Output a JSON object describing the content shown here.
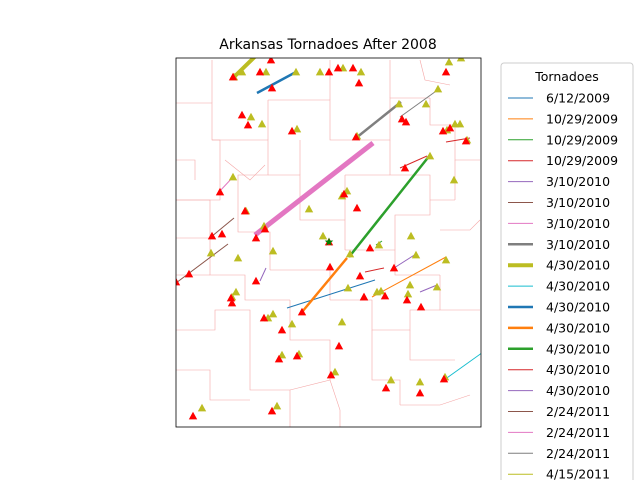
{
  "title": "Arkansas Tornadoes After 2008",
  "legend": {
    "title": "Tornadoes",
    "entries": [
      {
        "label": "6/12/2009",
        "color": "#1f77b4",
        "width": 1
      },
      {
        "label": "10/29/2009",
        "color": "#ff7f0e",
        "width": 1
      },
      {
        "label": "10/29/2009",
        "color": "#2ca02c",
        "width": 1
      },
      {
        "label": "10/29/2009",
        "color": "#d62728",
        "width": 1
      },
      {
        "label": "3/10/2010",
        "color": "#9467bd",
        "width": 1
      },
      {
        "label": "3/10/2010",
        "color": "#8c564b",
        "width": 1
      },
      {
        "label": "3/10/2010",
        "color": "#e377c2",
        "width": 1
      },
      {
        "label": "3/10/2010",
        "color": "#7f7f7f",
        "width": 2.5
      },
      {
        "label": "4/30/2010",
        "color": "#bcbd22",
        "width": 4
      },
      {
        "label": "4/30/2010",
        "color": "#17becf",
        "width": 1
      },
      {
        "label": "4/30/2010",
        "color": "#1f77b4",
        "width": 2.5
      },
      {
        "label": "4/30/2010",
        "color": "#ff7f0e",
        "width": 2.5
      },
      {
        "label": "4/30/2010",
        "color": "#2ca02c",
        "width": 2.5
      },
      {
        "label": "4/30/2010",
        "color": "#d62728",
        "width": 1
      },
      {
        "label": "4/30/2010",
        "color": "#9467bd",
        "width": 1
      },
      {
        "label": "2/24/2011",
        "color": "#8c564b",
        "width": 1
      },
      {
        "label": "2/24/2011",
        "color": "#e377c2",
        "width": 1
      },
      {
        "label": "2/24/2011",
        "color": "#7f7f7f",
        "width": 1
      },
      {
        "label": "4/15/2011",
        "color": "#bcbd22",
        "width": 1
      }
    ]
  },
  "colors": {
    "county_lines": "#f4a6a6",
    "start_marker": "#bcbd22",
    "end_marker": "#ff0000",
    "star_marker": "#008000"
  }
}
